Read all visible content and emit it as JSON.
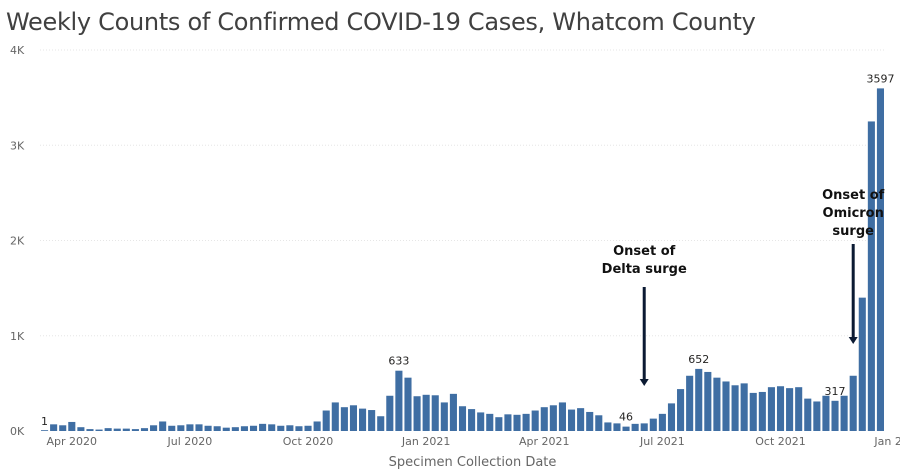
{
  "chart_data": {
    "type": "bar",
    "title": "Weekly Counts of Confirmed COVID-19 Cases, Whatcom County",
    "xlabel": "Specimen Collection Date",
    "ylabel": "",
    "ylim": [
      0,
      4000
    ],
    "yticks": [
      0,
      1000,
      2000,
      3000,
      4000
    ],
    "ytick_labels": [
      "0K",
      "1K",
      "2K",
      "3K",
      "4K"
    ],
    "grid": true,
    "color": "#3f6ea3",
    "xtick_labels": [
      "Apr 2020",
      "Jul 2020",
      "Oct 2020",
      "Jan 2021",
      "Apr 2021",
      "Jul 2021",
      "Oct 2021",
      "Jan 2022"
    ],
    "xtick_bar_index": [
      3,
      16,
      29,
      42,
      55,
      68,
      81,
      94
    ],
    "values": [
      1,
      70,
      60,
      95,
      40,
      20,
      15,
      30,
      25,
      25,
      20,
      30,
      60,
      100,
      55,
      60,
      70,
      70,
      55,
      50,
      35,
      40,
      50,
      55,
      75,
      70,
      55,
      60,
      50,
      55,
      100,
      215,
      300,
      250,
      270,
      235,
      220,
      155,
      370,
      633,
      560,
      365,
      380,
      375,
      300,
      390,
      260,
      230,
      195,
      180,
      145,
      175,
      170,
      180,
      215,
      250,
      270,
      300,
      225,
      240,
      200,
      165,
      90,
      80,
      46,
      75,
      80,
      130,
      180,
      290,
      440,
      580,
      652,
      620,
      560,
      520,
      480,
      500,
      400,
      410,
      460,
      470,
      450,
      460,
      340,
      310,
      370,
      317,
      370,
      580,
      1400,
      3250,
      3597
    ],
    "data_labels": [
      {
        "index": 0,
        "text": "1"
      },
      {
        "index": 39,
        "text": "633"
      },
      {
        "index": 64,
        "text": "46"
      },
      {
        "index": 72,
        "text": "652"
      },
      {
        "index": 87,
        "text": "317"
      },
      {
        "index": 92,
        "text": "3597"
      }
    ],
    "annotations": [
      {
        "text_lines": [
          "Onset of",
          "Delta surge"
        ],
        "bar_index": 66
      },
      {
        "text_lines": [
          "Onset of",
          "Omicron",
          "surge"
        ],
        "bar_index": 89
      }
    ]
  }
}
